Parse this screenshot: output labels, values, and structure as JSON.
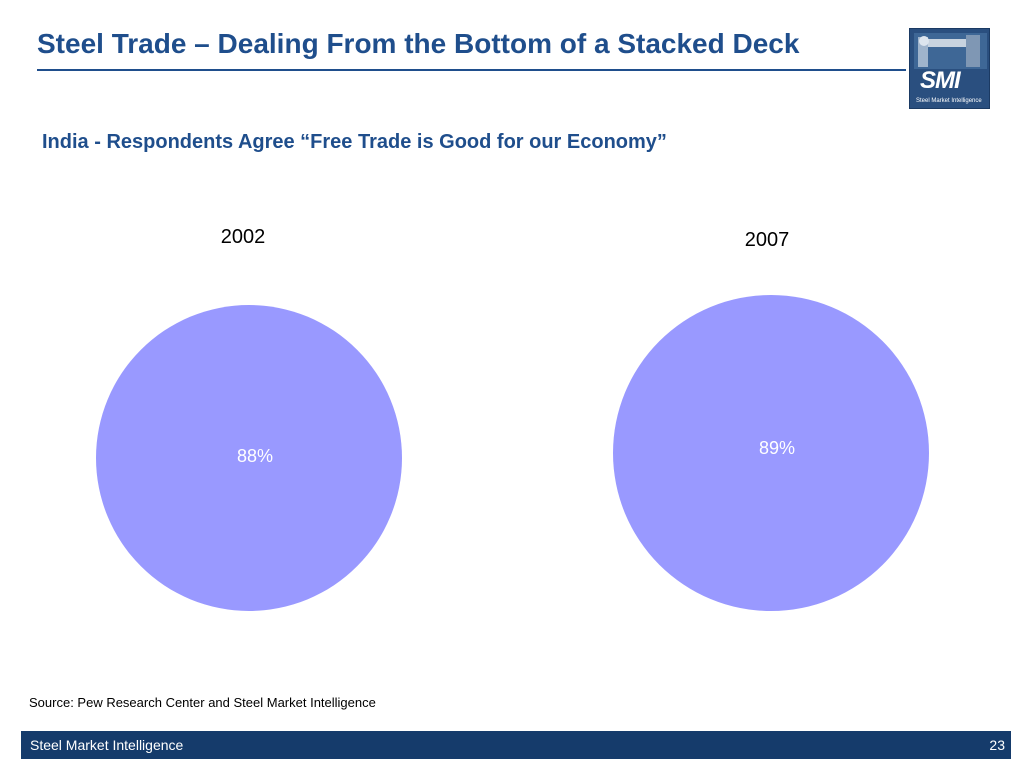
{
  "slide": {
    "title": "Steel Trade – Dealing From the Bottom of a Stacked Deck",
    "subtitle": "India - Respondents Agree “Free Trade is Good for our Economy”",
    "source": "Source: Pew Research Center and Steel Market Intelligence",
    "footer_left": "Steel Market Intelligence",
    "page_number": "23",
    "logo_text": "SMI",
    "logo_subtext": "Steel Market Intelligence"
  },
  "colors": {
    "title": "#1f4e8c",
    "pie_fill": "#9999ff",
    "pie_label": "#ffffff",
    "footer_bg": "#153b6b"
  },
  "chart_data": [
    {
      "type": "pie",
      "title": "2002",
      "slices": [
        {
          "label": "88%",
          "value": 88
        }
      ]
    },
    {
      "type": "pie",
      "title": "2007",
      "slices": [
        {
          "label": "89%",
          "value": 89
        }
      ]
    }
  ]
}
